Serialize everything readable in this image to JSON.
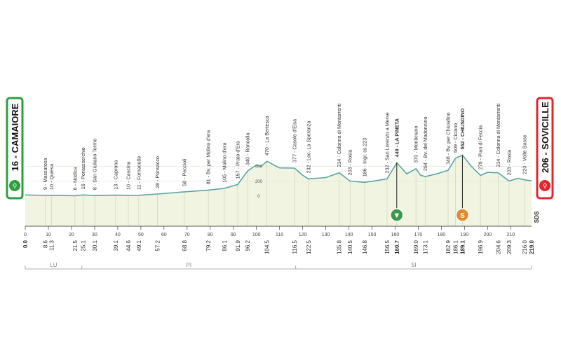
{
  "chart_data": {
    "type": "area",
    "title": "",
    "xlabel": "",
    "ylabel": "",
    "xlim": [
      0,
      219
    ],
    "ylim": [
      0,
      550
    ],
    "x_ticks": [
      "0",
      "10",
      "20",
      "30",
      "40",
      "50",
      "60",
      "70",
      "80",
      "90",
      "100",
      "110",
      "120",
      "130",
      "140",
      "150",
      "160",
      "170",
      "180",
      "190",
      "200",
      "210"
    ],
    "y_ticks": [
      "0",
      "200",
      "400"
    ],
    "start": {
      "label": "16 - CAMAIORE",
      "color": "#2e9e3e"
    },
    "finish": {
      "label": "206 - SOVICILLE",
      "color": "#e3262b"
    },
    "profile": {
      "fill": "#f1f4e0",
      "line": "#5aa6a6",
      "x": [
        0,
        8.6,
        11.3,
        21.5,
        25.1,
        30.1,
        39.1,
        44.6,
        49.1,
        57.2,
        68.8,
        79.2,
        86.1,
        91.9,
        96.2,
        100,
        102,
        104.5,
        110,
        116.5,
        120,
        122.5,
        130,
        135.8,
        140.5,
        146.8,
        150,
        156.5,
        160.7,
        165,
        169.0,
        171,
        173.1,
        178,
        182.9,
        186.1,
        189.1,
        193,
        196.9,
        200,
        204.6,
        209.3,
        213,
        216.0,
        219.0
      ],
      "alt": [
        16,
        9,
        10,
        6,
        16,
        8,
        13,
        10,
        11,
        28,
        58,
        81,
        105,
        157,
        340,
        420,
        400,
        470,
        380,
        377,
        280,
        232,
        250,
        314,
        203,
        186,
        200,
        232,
        449,
        300,
        370,
        280,
        264,
        300,
        348,
        509,
        552,
        400,
        279,
        320,
        314,
        203,
        240,
        220,
        206
      ]
    },
    "places": [
      {
        "km": 8.6,
        "dist": "8.6",
        "text": "9 - Massarosa"
      },
      {
        "km": 11.3,
        "dist": "11.3",
        "text": "10 - Quiesa"
      },
      {
        "km": 21.5,
        "dist": "21.5",
        "text": "6 - Nodica"
      },
      {
        "km": 25.1,
        "dist": "25.1",
        "text": "16 - Pontasserchio"
      },
      {
        "km": 30.1,
        "dist": "30.1",
        "text": "8 - San Giuliano Terme"
      },
      {
        "km": 39.1,
        "dist": "39.1",
        "text": "13 - Caprona"
      },
      {
        "km": 44.6,
        "dist": "44.6",
        "text": "10 - Cascina"
      },
      {
        "km": 49.1,
        "dist": "49.1",
        "text": "11 - Fornacette"
      },
      {
        "km": 57.2,
        "dist": "57.2",
        "text": "28 - Ponsacco"
      },
      {
        "km": 68.8,
        "dist": "68.8",
        "text": "58 - Peccioli"
      },
      {
        "km": 79.2,
        "dist": "79.2",
        "text": "81 - Bv. per Molino d'era"
      },
      {
        "km": 86.1,
        "dist": "86.1",
        "text": "105 - Molino d'era"
      },
      {
        "km": 91.9,
        "dist": "91.9",
        "text": "157 - Prato d'Era"
      },
      {
        "km": 96.2,
        "dist": "96.2",
        "text": "340 - Roncolla"
      },
      {
        "km": 104.5,
        "dist": "104.5",
        "text": "470 - La Bertesca"
      },
      {
        "km": 116.5,
        "dist": "116.5",
        "text": "377 - Casole d'Elsa"
      },
      {
        "km": 122.5,
        "dist": "122.5",
        "text": "232 - Loc. La Speranza"
      },
      {
        "km": 135.8,
        "dist": "135.8",
        "text": "314 - Colonna di Montarrenti"
      },
      {
        "km": 140.5,
        "dist": "140.5",
        "text": "203 - Rosia"
      },
      {
        "km": 146.8,
        "dist": "146.8",
        "text": "186 - Ingr. ss.223"
      },
      {
        "km": 156.5,
        "dist": "156.5",
        "text": "232 - San Lorenzo a Merse"
      },
      {
        "km": 160.7,
        "dist": "160.7",
        "text": "449 - LA PINETA",
        "bold": true
      },
      {
        "km": 169.0,
        "dist": "169.0",
        "text": "370 - Monticiano"
      },
      {
        "km": 173.1,
        "dist": "173.1",
        "text": "264 - Bv. del Madonnino"
      },
      {
        "km": 182.9,
        "dist": "182.9",
        "text": "348 - Bv. per Chiusdino"
      },
      {
        "km": 186.1,
        "dist": "186.1",
        "text": "509 - Ciciano"
      },
      {
        "km": 189.1,
        "dist": "189.1",
        "text": "552 - CHIUSDINO",
        "bold": true
      },
      {
        "km": 196.9,
        "dist": "196.9",
        "text": "279 - Pian di Feccia"
      },
      {
        "km": 204.6,
        "dist": "204.6",
        "text": "314 - Colonna di Montarrenti"
      },
      {
        "km": 209.3,
        "dist": "209.3",
        "text": "203 - Rosia"
      },
      {
        "km": 216.0,
        "dist": "216.0",
        "text": "220 - Volte Basse"
      }
    ],
    "start_dist": "0.0",
    "finish_dist": "219.0",
    "markers": [
      {
        "km": 160.7,
        "alt": 449,
        "symbol": "▼",
        "color": "#3a9a4a"
      },
      {
        "km": 189.1,
        "alt": 552,
        "symbol": "S",
        "color": "#e08a2a"
      }
    ],
    "provinces": [
      {
        "label": "LU",
        "from": 0,
        "to": 24.5
      },
      {
        "label": "PI",
        "from": 24.5,
        "to": 117
      },
      {
        "label": "SI",
        "from": 117,
        "to": 219
      }
    ],
    "brand": "SDS"
  }
}
